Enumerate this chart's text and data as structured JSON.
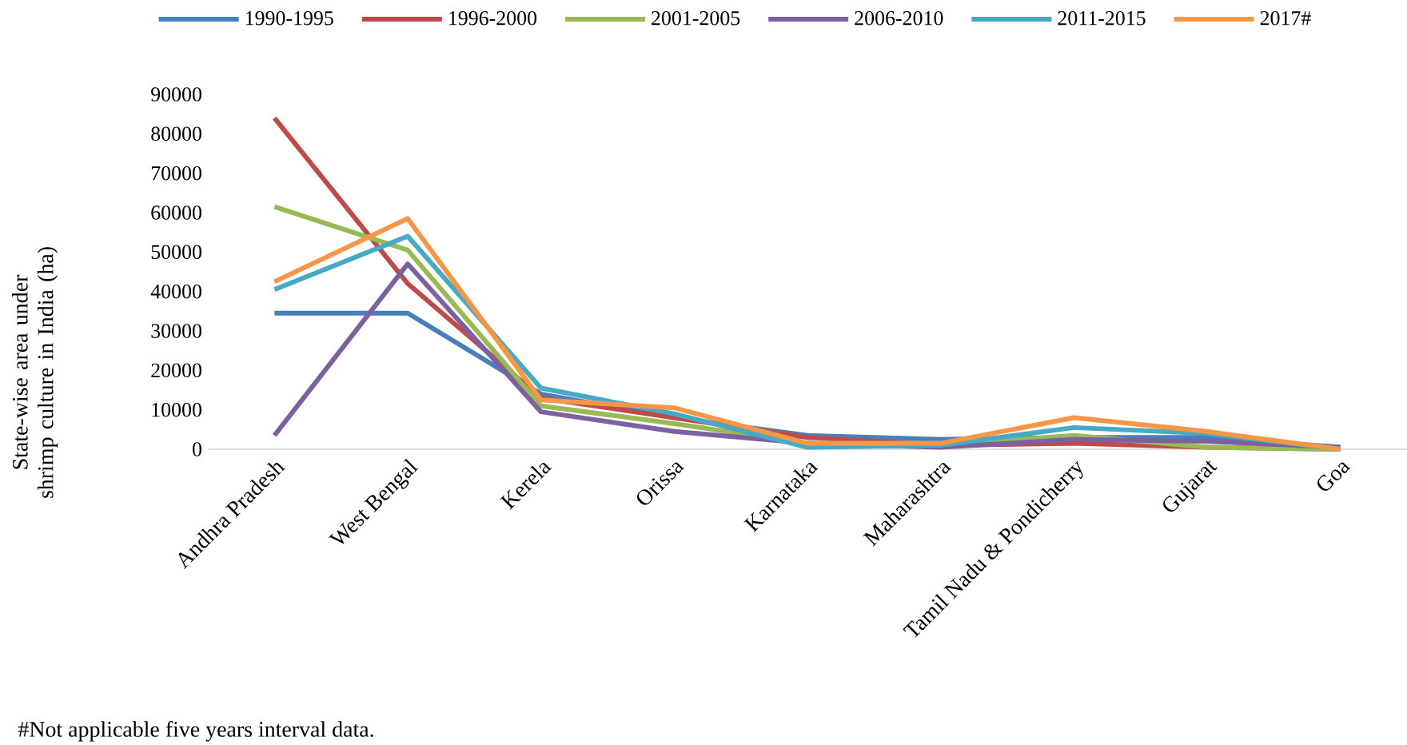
{
  "chart_data": {
    "type": "line",
    "ylabel": "State-wise area under shrimp culture in India (ha)",
    "categories": [
      "Andhra Pradesh",
      "West Bengal",
      "Kerela",
      "Orissa",
      "Karnataka",
      "Maharashtra",
      "Tamil Nadu & Pondicherry",
      "Gujarat",
      "Goa"
    ],
    "series": [
      {
        "name": "1990-1995",
        "color": "#4a7ebb",
        "values": [
          34500,
          34500,
          14000,
          8000,
          3500,
          2500,
          3000,
          3000,
          500
        ]
      },
      {
        "name": "1996-2000",
        "color": "#be4b48",
        "values": [
          84000,
          42000,
          13000,
          8000,
          3000,
          1000,
          1500,
          500,
          0
        ]
      },
      {
        "name": "2001-2005",
        "color": "#98b954",
        "values": [
          61500,
          50500,
          11000,
          6500,
          1500,
          1000,
          3500,
          500,
          0
        ]
      },
      {
        "name": "2006-2010",
        "color": "#7d60a0",
        "values": [
          3500,
          47000,
          9500,
          4500,
          1500,
          500,
          2500,
          2000,
          500
        ]
      },
      {
        "name": "2011-2015",
        "color": "#46aac5",
        "values": [
          40500,
          54000,
          15500,
          9000,
          500,
          1000,
          5500,
          4000,
          0
        ]
      },
      {
        "name": "2017#",
        "color": "#f79646",
        "values": [
          42500,
          58500,
          12500,
          10500,
          1500,
          1500,
          8000,
          4500,
          0
        ]
      }
    ],
    "ylim": [
      0,
      90000
    ],
    "yticks": [
      0,
      10000,
      20000,
      30000,
      40000,
      50000,
      60000,
      70000,
      80000,
      90000
    ],
    "legend": "top",
    "annotations": [
      "#Not applicable five years interval data."
    ]
  }
}
